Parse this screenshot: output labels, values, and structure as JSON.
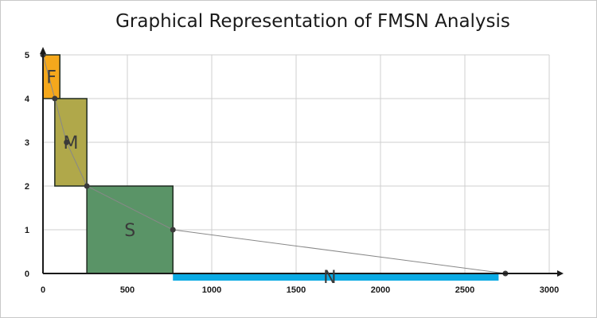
{
  "chart_data": {
    "type": "bar",
    "title": "Graphical Representation of FMSN Analysis",
    "xlabel": "",
    "ylabel": "",
    "xlim": [
      0,
      3000
    ],
    "ylim": [
      0,
      5
    ],
    "x_ticks": [
      0,
      500,
      1000,
      1500,
      2000,
      2500,
      3000
    ],
    "y_ticks": [
      0,
      1,
      2,
      3,
      4,
      5
    ],
    "grid": true,
    "categories": [
      {
        "label": "F",
        "x_start": 0,
        "x_end": 100,
        "y_start": 4,
        "y_end": 5,
        "color": "#f5a81c"
      },
      {
        "label": "M",
        "x_start": 70,
        "x_end": 260,
        "y_start": 2,
        "y_end": 4,
        "color": "#b0a84a"
      },
      {
        "label": "S",
        "x_start": 260,
        "x_end": 770,
        "y_start": 0,
        "y_end": 2,
        "color": "#5a9467"
      },
      {
        "label": "N",
        "x_start": 770,
        "x_end": 2700,
        "y_start": 0,
        "y_end": 0,
        "color": "#0aaae4"
      }
    ],
    "line_points": [
      {
        "x": 0,
        "y": 5
      },
      {
        "x": 70,
        "y": 4
      },
      {
        "x": 140,
        "y": 3
      },
      {
        "x": 260,
        "y": 2
      },
      {
        "x": 770,
        "y": 1
      },
      {
        "x": 2740,
        "y": 0
      }
    ],
    "line_color": "#888888"
  }
}
